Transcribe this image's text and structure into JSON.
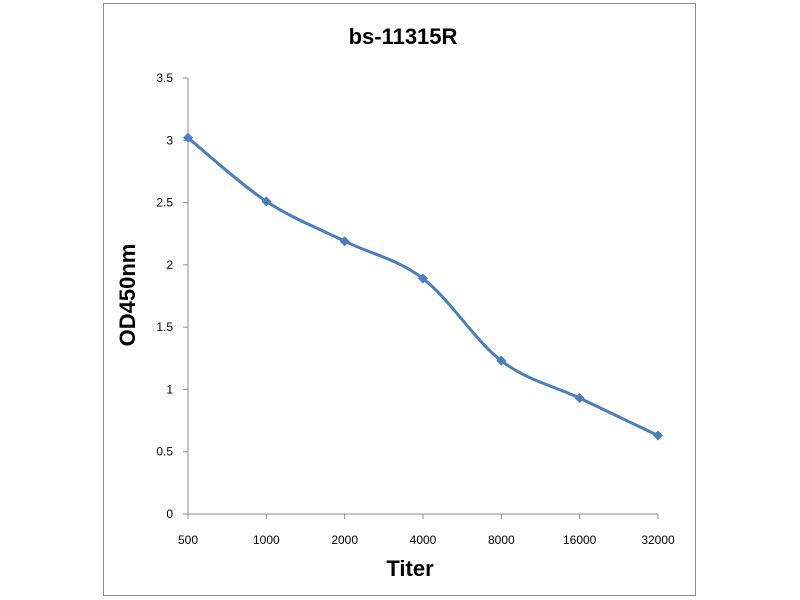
{
  "chart_data": {
    "type": "line",
    "title": "bs-11315R",
    "xlabel": "Titer",
    "ylabel": "OD450nm",
    "categories": [
      "500",
      "1000",
      "2000",
      "4000",
      "8000",
      "16000",
      "32000"
    ],
    "series": [
      {
        "values": [
          3.02,
          2.51,
          2.19,
          1.89,
          1.23,
          0.93,
          0.63
        ],
        "color": "#4a7ebb",
        "marker": "diamond",
        "smooth": true
      }
    ],
    "ylim": [
      0,
      3.5
    ],
    "yticks": [
      "0",
      "0.5",
      "1",
      "1.5",
      "2",
      "2.5",
      "3",
      "3.5"
    ],
    "grid": false,
    "legend": "none"
  }
}
